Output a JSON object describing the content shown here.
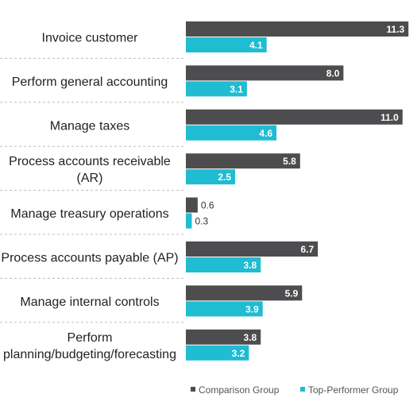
{
  "chart_data": {
    "type": "bar",
    "orientation": "horizontal",
    "title": "",
    "xlabel": "",
    "ylabel": "",
    "categories": [
      [
        "Invoice customer"
      ],
      [
        "Perform general accounting"
      ],
      [
        "Manage taxes"
      ],
      [
        "Process accounts receivable",
        "(AR)"
      ],
      [
        "Manage treasury operations"
      ],
      [
        "Process accounts payable (AP)"
      ],
      [
        "Manage internal controls"
      ],
      [
        "Perform",
        "planning/budgeting/forecasting"
      ]
    ],
    "series": [
      {
        "name": "Comparison Group",
        "color": "#4d4d4f",
        "values": [
          11.3,
          8.0,
          11.0,
          5.8,
          0.6,
          6.7,
          5.9,
          3.8
        ]
      },
      {
        "name": "Top-Performer Group",
        "color": "#1fbcd2",
        "values": [
          4.1,
          3.1,
          4.6,
          2.5,
          0.3,
          3.8,
          3.9,
          3.2
        ]
      }
    ],
    "value_labels": [
      [
        "11.3",
        "8.0",
        "11.0",
        "5.8",
        "0.6",
        "6.7",
        "5.9",
        "3.8"
      ],
      [
        "4.1",
        "3.1",
        "4.6",
        "2.5",
        "0.3",
        "3.8",
        "3.9",
        "3.2"
      ]
    ],
    "legend": "bottom-right",
    "grid": false
  }
}
